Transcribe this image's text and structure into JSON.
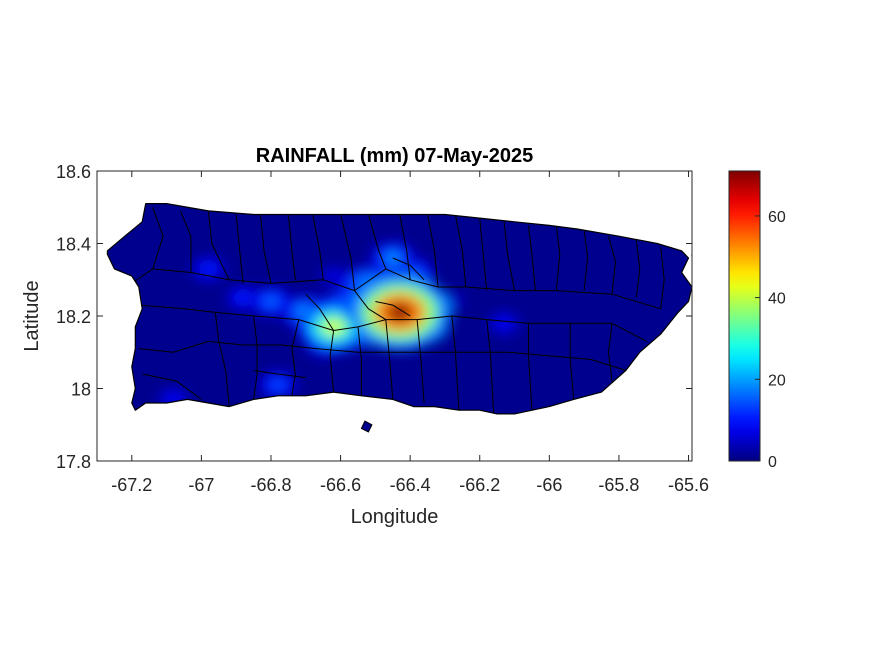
{
  "chart_data": {
    "type": "heatmap",
    "title": "RAINFALL (mm) 07-May-2025",
    "xlabel": "Longitude",
    "ylabel": "Latitude",
    "xlim": [
      -67.3,
      -65.59
    ],
    "ylim": [
      17.8,
      18.6
    ],
    "xticks": [
      -67.2,
      -67,
      -66.8,
      -66.6,
      -66.4,
      -66.2,
      -66,
      -65.8,
      -65.6
    ],
    "xtick_labels": [
      "-67.2",
      "-67",
      "-66.8",
      "-66.6",
      "-66.4",
      "-66.2",
      "-66",
      "-65.8",
      "-65.6"
    ],
    "yticks": [
      17.8,
      18,
      18.2,
      18.4,
      18.6
    ],
    "ytick_labels": [
      "17.8",
      "18",
      "18.2",
      "18.4",
      "18.6"
    ],
    "colorbar": {
      "colormap": "jet",
      "limits": [
        0,
        71
      ],
      "ticks": [
        0,
        20,
        40,
        60
      ],
      "tick_labels": [
        "0",
        "20",
        "40",
        "60"
      ]
    },
    "background_value": 1,
    "rainfall_cells": [
      {
        "lon": -66.43,
        "lat": 18.21,
        "value": 70
      },
      {
        "lon": -66.49,
        "lat": 18.23,
        "value": 45
      },
      {
        "lon": -66.41,
        "lat": 18.25,
        "value": 35
      },
      {
        "lon": -66.62,
        "lat": 18.17,
        "value": 42
      },
      {
        "lon": -66.58,
        "lat": 18.2,
        "value": 38
      },
      {
        "lon": -66.52,
        "lat": 18.28,
        "value": 28
      },
      {
        "lon": -66.45,
        "lat": 18.36,
        "value": 20
      },
      {
        "lon": -66.39,
        "lat": 18.32,
        "value": 16
      },
      {
        "lon": -66.7,
        "lat": 18.21,
        "value": 22
      },
      {
        "lon": -66.8,
        "lat": 18.24,
        "value": 17
      },
      {
        "lon": -66.88,
        "lat": 18.25,
        "value": 12
      },
      {
        "lon": -66.98,
        "lat": 18.33,
        "value": 12
      },
      {
        "lon": -66.78,
        "lat": 18.01,
        "value": 15
      },
      {
        "lon": -66.13,
        "lat": 18.18,
        "value": 10
      },
      {
        "lon": -66.33,
        "lat": 18.16,
        "value": 8
      },
      {
        "lon": -67.08,
        "lat": 17.97,
        "value": 10
      },
      {
        "lon": -66.62,
        "lat": 18.31,
        "value": 8
      },
      {
        "lon": -66.65,
        "lat": 18.12,
        "value": 12
      },
      {
        "lon": -66.55,
        "lat": 18.14,
        "value": 9
      },
      {
        "lon": -66.28,
        "lat": 18.24,
        "value": 6
      }
    ],
    "island_outline": [
      [
        -67.27,
        18.37
      ],
      [
        -67.25,
        18.33
      ],
      [
        -67.2,
        18.31
      ],
      [
        -67.18,
        18.28
      ],
      [
        -67.17,
        18.22
      ],
      [
        -67.19,
        18.17
      ],
      [
        -67.19,
        18.11
      ],
      [
        -67.2,
        18.06
      ],
      [
        -67.19,
        18.0
      ],
      [
        -67.2,
        17.96
      ],
      [
        -67.19,
        17.94
      ],
      [
        -67.16,
        17.96
      ],
      [
        -67.1,
        17.96
      ],
      [
        -67.04,
        17.97
      ],
      [
        -66.98,
        17.96
      ],
      [
        -66.92,
        17.95
      ],
      [
        -66.85,
        17.97
      ],
      [
        -66.78,
        17.98
      ],
      [
        -66.7,
        17.98
      ],
      [
        -66.62,
        17.99
      ],
      [
        -66.54,
        17.98
      ],
      [
        -66.45,
        17.97
      ],
      [
        -66.39,
        17.95
      ],
      [
        -66.33,
        17.95
      ],
      [
        -66.26,
        17.94
      ],
      [
        -66.2,
        17.94
      ],
      [
        -66.15,
        17.93
      ],
      [
        -66.1,
        17.93
      ],
      [
        -66.0,
        17.95
      ],
      [
        -65.93,
        17.97
      ],
      [
        -65.85,
        17.99
      ],
      [
        -65.78,
        18.05
      ],
      [
        -65.74,
        18.1
      ],
      [
        -65.68,
        18.15
      ],
      [
        -65.63,
        18.21
      ],
      [
        -65.6,
        18.24
      ],
      [
        -65.59,
        18.28
      ],
      [
        -65.62,
        18.32
      ],
      [
        -65.6,
        18.36
      ],
      [
        -65.62,
        18.38
      ],
      [
        -65.69,
        18.4
      ],
      [
        -65.8,
        18.42
      ],
      [
        -65.92,
        18.44
      ],
      [
        -66.0,
        18.45
      ],
      [
        -66.1,
        18.46
      ],
      [
        -66.2,
        18.47
      ],
      [
        -66.3,
        18.48
      ],
      [
        -66.4,
        18.48
      ],
      [
        -66.55,
        18.48
      ],
      [
        -66.7,
        18.48
      ],
      [
        -66.85,
        18.48
      ],
      [
        -66.98,
        18.49
      ],
      [
        -67.1,
        18.51
      ],
      [
        -67.16,
        18.51
      ],
      [
        -67.17,
        18.46
      ],
      [
        -67.22,
        18.42
      ],
      [
        -67.27,
        18.38
      ]
    ],
    "municipality_boundaries": [
      [
        [
          -67.14,
          18.5
        ],
        [
          -67.11,
          18.42
        ],
        [
          -67.14,
          18.33
        ],
        [
          -67.2,
          18.29
        ]
      ],
      [
        [
          -67.14,
          18.33
        ],
        [
          -67.03,
          18.32
        ],
        [
          -66.92,
          18.3
        ]
      ],
      [
        [
          -67.18,
          18.23
        ],
        [
          -67.05,
          18.22
        ],
        [
          -66.96,
          18.21
        ]
      ],
      [
        [
          -67.18,
          18.11
        ],
        [
          -67.08,
          18.1
        ],
        [
          -66.98,
          18.13
        ]
      ],
      [
        [
          -67.17,
          18.04
        ],
        [
          -67.07,
          18.02
        ],
        [
          -67.0,
          17.97
        ]
      ],
      [
        [
          -67.06,
          18.49
        ],
        [
          -67.03,
          18.42
        ],
        [
          -67.03,
          18.32
        ]
      ],
      [
        [
          -66.98,
          18.49
        ],
        [
          -66.97,
          18.4
        ],
        [
          -66.92,
          18.3
        ]
      ],
      [
        [
          -66.9,
          18.48
        ],
        [
          -66.89,
          18.38
        ],
        [
          -66.88,
          18.29
        ]
      ],
      [
        [
          -66.83,
          18.48
        ],
        [
          -66.82,
          18.38
        ],
        [
          -66.8,
          18.29
        ]
      ],
      [
        [
          -66.75,
          18.48
        ],
        [
          -66.74,
          18.38
        ],
        [
          -66.73,
          18.3
        ]
      ],
      [
        [
          -66.68,
          18.48
        ],
        [
          -66.66,
          18.38
        ],
        [
          -66.65,
          18.3
        ]
      ],
      [
        [
          -66.6,
          18.48
        ],
        [
          -66.57,
          18.36
        ],
        [
          -66.56,
          18.27
        ]
      ],
      [
        [
          -66.52,
          18.48
        ],
        [
          -66.49,
          18.38
        ],
        [
          -66.47,
          18.33
        ]
      ],
      [
        [
          -66.43,
          18.48
        ],
        [
          -66.41,
          18.38
        ],
        [
          -66.4,
          18.3
        ]
      ],
      [
        [
          -66.35,
          18.48
        ],
        [
          -66.33,
          18.38
        ],
        [
          -66.32,
          18.28
        ]
      ],
      [
        [
          -66.27,
          18.48
        ],
        [
          -66.25,
          18.38
        ],
        [
          -66.24,
          18.28
        ]
      ],
      [
        [
          -66.2,
          18.47
        ],
        [
          -66.19,
          18.37
        ],
        [
          -66.18,
          18.27
        ]
      ],
      [
        [
          -66.13,
          18.46
        ],
        [
          -66.12,
          18.37
        ],
        [
          -66.1,
          18.27
        ]
      ],
      [
        [
          -66.06,
          18.45
        ],
        [
          -66.05,
          18.37
        ],
        [
          -66.04,
          18.27
        ]
      ],
      [
        [
          -65.98,
          18.45
        ],
        [
          -65.97,
          18.37
        ],
        [
          -65.98,
          18.27
        ]
      ],
      [
        [
          -65.9,
          18.44
        ],
        [
          -65.89,
          18.36
        ],
        [
          -65.9,
          18.27
        ]
      ],
      [
        [
          -65.83,
          18.42
        ],
        [
          -65.81,
          18.35
        ],
        [
          -65.82,
          18.26
        ]
      ],
      [
        [
          -65.75,
          18.41
        ],
        [
          -65.74,
          18.33
        ],
        [
          -65.75,
          18.25
        ]
      ],
      [
        [
          -65.68,
          18.39
        ],
        [
          -65.67,
          18.3
        ],
        [
          -65.68,
          18.22
        ]
      ],
      [
        [
          -66.92,
          18.3
        ],
        [
          -66.8,
          18.29
        ],
        [
          -66.65,
          18.3
        ],
        [
          -66.56,
          18.27
        ],
        [
          -66.47,
          18.33
        ],
        [
          -66.4,
          18.3
        ],
        [
          -66.32,
          18.28
        ],
        [
          -66.24,
          18.28
        ],
        [
          -66.1,
          18.27
        ],
        [
          -65.98,
          18.27
        ],
        [
          -65.82,
          18.26
        ],
        [
          -65.68,
          18.22
        ]
      ],
      [
        [
          -66.96,
          18.21
        ],
        [
          -66.85,
          18.2
        ],
        [
          -66.72,
          18.19
        ],
        [
          -66.62,
          18.16
        ],
        [
          -66.55,
          18.17
        ],
        [
          -66.47,
          18.19
        ],
        [
          -66.38,
          18.19
        ],
        [
          -66.28,
          18.2
        ],
        [
          -66.18,
          18.19
        ],
        [
          -66.06,
          18.18
        ],
        [
          -65.94,
          18.18
        ],
        [
          -65.82,
          18.18
        ],
        [
          -65.72,
          18.13
        ]
      ],
      [
        [
          -66.98,
          18.13
        ],
        [
          -66.88,
          18.12
        ],
        [
          -66.77,
          18.12
        ],
        [
          -66.67,
          18.11
        ],
        [
          -66.55,
          18.1
        ],
        [
          -66.44,
          18.1
        ],
        [
          -66.33,
          18.1
        ],
        [
          -66.22,
          18.1
        ],
        [
          -66.12,
          18.1
        ],
        [
          -66.0,
          18.09
        ],
        [
          -65.88,
          18.08
        ],
        [
          -65.78,
          18.05
        ]
      ],
      [
        [
          -66.96,
          18.21
        ],
        [
          -66.95,
          18.13
        ],
        [
          -66.93,
          18.05
        ],
        [
          -66.92,
          17.95
        ]
      ],
      [
        [
          -66.85,
          18.2
        ],
        [
          -66.84,
          18.12
        ],
        [
          -66.84,
          18.04
        ],
        [
          -66.85,
          17.97
        ]
      ],
      [
        [
          -66.72,
          18.19
        ],
        [
          -66.74,
          18.11
        ],
        [
          -66.73,
          18.04
        ],
        [
          -66.74,
          17.98
        ]
      ],
      [
        [
          -66.62,
          18.16
        ],
        [
          -66.63,
          18.09
        ],
        [
          -66.62,
          17.99
        ]
      ],
      [
        [
          -66.55,
          18.17
        ],
        [
          -66.54,
          18.08
        ],
        [
          -66.54,
          17.98
        ]
      ],
      [
        [
          -66.47,
          18.19
        ],
        [
          -66.46,
          18.09
        ],
        [
          -66.45,
          17.97
        ]
      ],
      [
        [
          -66.38,
          18.19
        ],
        [
          -66.37,
          18.09
        ],
        [
          -66.36,
          17.96
        ]
      ],
      [
        [
          -66.28,
          18.2
        ],
        [
          -66.27,
          18.1
        ],
        [
          -66.26,
          17.94
        ]
      ],
      [
        [
          -66.18,
          18.19
        ],
        [
          -66.17,
          18.1
        ],
        [
          -66.16,
          17.93
        ]
      ],
      [
        [
          -66.06,
          18.18
        ],
        [
          -66.06,
          18.09
        ],
        [
          -66.05,
          17.94
        ]
      ],
      [
        [
          -65.94,
          18.18
        ],
        [
          -65.94,
          18.08
        ],
        [
          -65.93,
          17.97
        ]
      ],
      [
        [
          -65.82,
          18.18
        ],
        [
          -65.83,
          18.1
        ],
        [
          -65.82,
          18.02
        ]
      ],
      [
        [
          -66.56,
          18.27
        ],
        [
          -66.52,
          18.22
        ],
        [
          -66.47,
          18.19
        ]
      ],
      [
        [
          -66.45,
          18.36
        ],
        [
          -66.4,
          18.34
        ],
        [
          -66.36,
          18.3
        ]
      ],
      [
        [
          -66.5,
          18.24
        ],
        [
          -66.45,
          18.23
        ],
        [
          -66.4,
          18.2
        ]
      ],
      [
        [
          -66.7,
          18.26
        ],
        [
          -66.66,
          18.22
        ],
        [
          -66.62,
          18.16
        ]
      ],
      [
        [
          -66.85,
          18.05
        ],
        [
          -66.78,
          18.04
        ],
        [
          -66.7,
          18.03
        ]
      ]
    ],
    "small_islands": [
      [
        [
          -66.54,
          17.89
        ],
        [
          -66.52,
          17.88
        ],
        [
          -66.51,
          17.9
        ],
        [
          -66.53,
          17.91
        ]
      ],
      [
        [
          -65.59,
          18.37
        ],
        [
          -65.57,
          18.38
        ],
        [
          -65.58,
          18.39
        ]
      ]
    ]
  }
}
